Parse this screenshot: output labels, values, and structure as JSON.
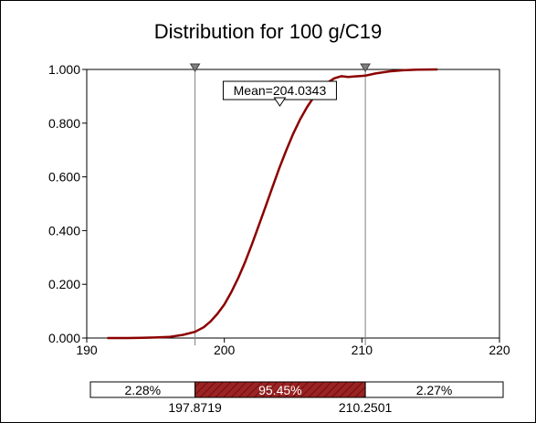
{
  "chart_data": {
    "type": "line",
    "title": "Distribution for 100 g/C19",
    "xlabel": "",
    "ylabel": "",
    "xlim": [
      190,
      220
    ],
    "ylim": [
      0,
      1
    ],
    "x_ticks": [
      "190",
      "200",
      "210",
      "220"
    ],
    "y_ticks": [
      "0.000",
      "0.200",
      "0.400",
      "0.600",
      "0.800",
      "1.000"
    ],
    "grid": false,
    "series": [
      {
        "x": [
          191.5,
          193,
          194,
          195,
          196,
          197,
          197.87,
          198.5,
          199,
          199.5,
          200,
          200.5,
          201,
          201.5,
          202,
          202.5,
          203,
          203.5,
          204,
          204.5,
          205,
          205.5,
          206,
          206.5,
          207,
          207.5,
          208,
          208.5,
          209,
          209.5,
          210,
          210.25,
          211,
          212,
          213,
          214,
          215.5
        ],
        "y": [
          0.0,
          0.0,
          0.001,
          0.002,
          0.004,
          0.012,
          0.023,
          0.04,
          0.062,
          0.09,
          0.125,
          0.17,
          0.222,
          0.282,
          0.348,
          0.418,
          0.49,
          0.562,
          0.633,
          0.699,
          0.76,
          0.813,
          0.859,
          0.897,
          0.927,
          0.951,
          0.967,
          0.975,
          0.972,
          0.974,
          0.976,
          0.977,
          0.985,
          0.993,
          0.997,
          0.999,
          1.0
        ]
      }
    ],
    "mean_label": "Mean=204.0343",
    "mean_value": 204.0343,
    "markers": [
      197.8719,
      210.2501
    ],
    "marker_labels": [
      "197.8719",
      "210.2501"
    ],
    "bands": [
      {
        "label": "2.28%",
        "value": 0.0228
      },
      {
        "label": "95.45%",
        "value": 0.9545
      },
      {
        "label": "2.27%",
        "value": 0.0227
      }
    ],
    "colors": {
      "curve": "#8b0000",
      "band_fill": "#9c2323",
      "axis": "#000000",
      "marker": "#808080"
    }
  }
}
